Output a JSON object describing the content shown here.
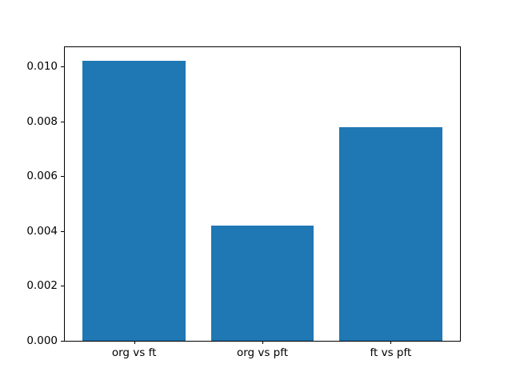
{
  "figure": {
    "background": "#ffffff",
    "plot_background": "#ffffff",
    "spine_color": "#000000",
    "tick_color": "#000000",
    "text_color": "#000000"
  },
  "chart_data": {
    "type": "bar",
    "title": "",
    "xlabel": "",
    "ylabel": "",
    "categories": [
      "org vs ft",
      "org vs pft",
      "ft vs pft"
    ],
    "values": [
      0.0102,
      0.0042,
      0.0078
    ],
    "bar_color": "#1f77b4",
    "bar_width_fraction": 0.8,
    "x_positions": [
      0,
      1,
      2
    ],
    "xlim": [
      -0.54,
      2.54
    ],
    "ylim": [
      0,
      0.01071
    ],
    "yticks": [
      {
        "value": 0.0,
        "label": "0.000"
      },
      {
        "value": 0.002,
        "label": "0.002"
      },
      {
        "value": 0.004,
        "label": "0.004"
      },
      {
        "value": 0.006,
        "label": "0.006"
      },
      {
        "value": 0.008,
        "label": "0.008"
      },
      {
        "value": 0.01,
        "label": "0.010"
      }
    ],
    "grid": false,
    "legend": null
  }
}
